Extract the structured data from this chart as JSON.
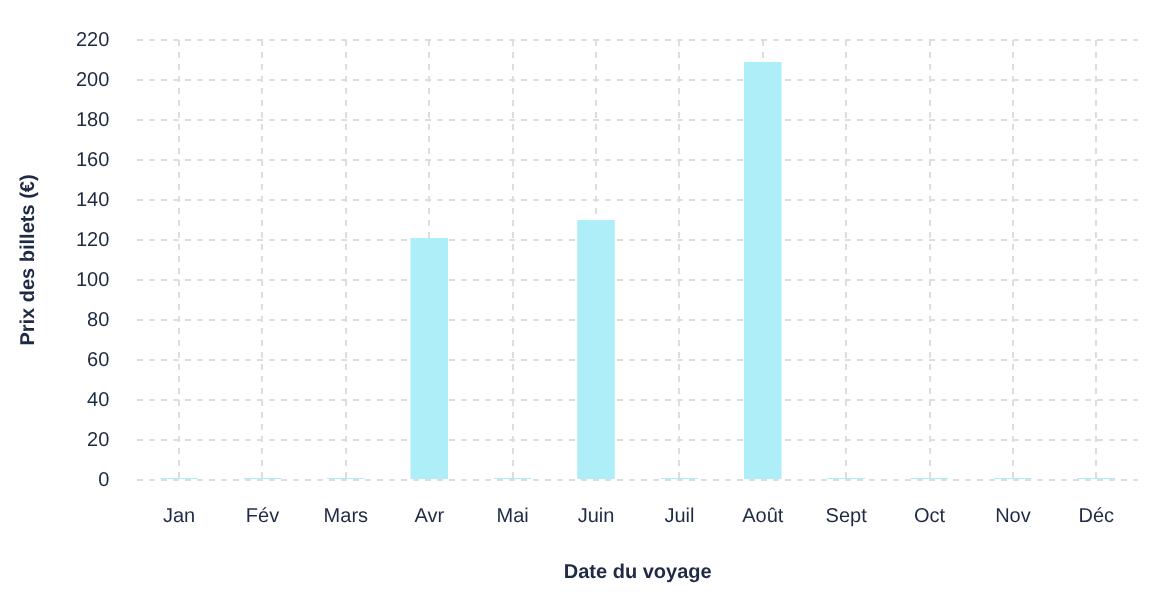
{
  "chart_data": {
    "type": "bar",
    "xlabel": "Date du voyage",
    "ylabel": "Prix des billets (€)",
    "categories": [
      "Jan",
      "Fév",
      "Mars",
      "Avr",
      "Mai",
      "Juin",
      "Juil",
      "Août",
      "Sept",
      "Oct",
      "Nov",
      "Déc"
    ],
    "values": [
      0,
      0,
      0,
      121,
      0,
      130,
      0,
      209,
      0,
      0,
      0,
      0
    ],
    "color": "#aeeef8",
    "ylim": [
      0,
      220
    ],
    "yticks": [
      0,
      20,
      40,
      60,
      80,
      100,
      120,
      140,
      160,
      180,
      200,
      220
    ],
    "grid": true,
    "legend": false
  }
}
